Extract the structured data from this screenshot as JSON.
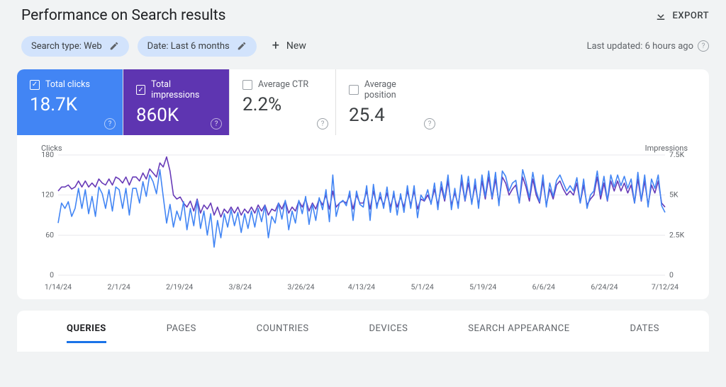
{
  "header": {
    "title": "Performance on Search results",
    "export_label": "EXPORT"
  },
  "filters": {
    "search_type": "Search type: Web",
    "date_range": "Date: Last 6 months",
    "new_label": "New",
    "last_updated": "Last updated: 6 hours ago"
  },
  "metrics": {
    "clicks": {
      "label": "Total clicks",
      "value": "18.7K",
      "checked": true,
      "bg": "#4285f4"
    },
    "impressions": {
      "label": "Total impressions",
      "value": "860K",
      "checked": true,
      "bg": "#5e35b1"
    },
    "ctr": {
      "label": "Average CTR",
      "value": "2.2%",
      "checked": false,
      "bg": "#ffffff"
    },
    "position": {
      "label": "Average position",
      "value": "25.4",
      "checked": false,
      "bg": "#ffffff"
    }
  },
  "chart": {
    "y_left_label": "Clicks",
    "y_right_label": "Impressions",
    "y_left_ticks": [
      "180",
      "120",
      "60",
      "0"
    ],
    "y_right_ticks": [
      "7.5K",
      "5K",
      "2.5K",
      "0"
    ],
    "x_ticks": [
      "1/14/24",
      "2/1/24",
      "2/19/24",
      "3/8/24",
      "3/26/24",
      "4/13/24",
      "5/1/24",
      "5/19/24",
      "6/6/24",
      "6/24/24",
      "7/12/24"
    ],
    "x_domain": [
      0,
      180
    ],
    "y_left_domain": [
      0,
      180
    ],
    "y_right_domain": [
      0,
      7500
    ],
    "grid_color": "#e8eaed",
    "axis_text_color": "#5f6368",
    "background_color": "#ffffff",
    "series": {
      "clicks": {
        "color": "#4285f4",
        "stroke_width": 1.6,
        "values": [
          78,
          108,
          100,
          110,
          88,
          100,
          130,
          100,
          128,
          92,
          118,
          88,
          132,
          122,
          100,
          128,
          96,
          132,
          128,
          100,
          130,
          90,
          130,
          130,
          108,
          140,
          118,
          150,
          140,
          122,
          158,
          118,
          78,
          106,
          72,
          96,
          82,
          110,
          68,
          100,
          74,
          112,
          70,
          96,
          60,
          92,
          42,
          82,
          56,
          92,
          72,
          98,
          74,
          94,
          64,
          92,
          70,
          96,
          72,
          100,
          80,
          104,
          56,
          88,
          78,
          108,
          84,
          112,
          68,
          96,
          78,
          112,
          92,
          118,
          76,
          106,
          82,
          116,
          98,
          128,
          80,
          150,
          88,
          108,
          112,
          104,
          126,
          82,
          126,
          106,
          102,
          134,
          82,
          136,
          100,
          124,
          100,
          132,
          94,
          126,
          90,
          122,
          94,
          134,
          100,
          134,
          86,
          120,
          112,
          128,
          106,
          138,
          98,
          140,
          114,
          150,
          98,
          130,
          100,
          150,
          112,
          148,
          106,
          144,
          100,
          150,
          118,
          156,
          116,
          154,
          104,
          156,
          148,
          126,
          138,
          142,
          108,
          158,
          140,
          116,
          154,
          126,
          110,
          150,
          102,
          138,
          118,
          142,
          150,
          138,
          126,
          134,
          126,
          146,
          108,
          144,
          100,
          120,
          126,
          156,
          120,
          148,
          112,
          150,
          132,
          150,
          134,
          148,
          130,
          144,
          108,
          154,
          112,
          150,
          102,
          144,
          130,
          150,
          104,
          94
        ]
      },
      "impressions": {
        "color": "#673ab7",
        "stroke_width": 1.6,
        "values": [
          5250,
          5500,
          5500,
          5625,
          5375,
          5500,
          5875,
          5500,
          5875,
          5500,
          5750,
          5500,
          6000,
          5750,
          5625,
          6000,
          5625,
          6125,
          6000,
          5750,
          6125,
          5625,
          6125,
          6125,
          5875,
          6375,
          6000,
          6625,
          6375,
          6125,
          7000,
          6750,
          7375,
          6500,
          5000,
          4750,
          4875,
          4500,
          4250,
          4625,
          4000,
          4750,
          3875,
          4375,
          4125,
          4500,
          3750,
          4250,
          3625,
          4125,
          3875,
          4250,
          3875,
          4250,
          3750,
          4125,
          3875,
          4250,
          3875,
          4375,
          4000,
          4375,
          3750,
          4125,
          4000,
          4500,
          4125,
          4625,
          3875,
          4250,
          4000,
          4625,
          4250,
          4750,
          4000,
          4500,
          4125,
          4750,
          4375,
          5000,
          4125,
          5250,
          4250,
          4500,
          4625,
          4500,
          5000,
          4125,
          5000,
          4500,
          4500,
          5250,
          4125,
          5250,
          4375,
          4875,
          4375,
          5125,
          4250,
          5000,
          4250,
          4875,
          4250,
          5250,
          4375,
          5250,
          4125,
          4750,
          4625,
          5000,
          4500,
          5375,
          4375,
          5500,
          4625,
          5875,
          4375,
          5125,
          4375,
          5875,
          4625,
          5750,
          4500,
          5625,
          4375,
          5875,
          4750,
          6125,
          4750,
          6000,
          4500,
          6125,
          5750,
          5000,
          5375,
          5625,
          4500,
          6125,
          5500,
          4625,
          6000,
          5000,
          4500,
          5875,
          4375,
          5375,
          4750,
          5625,
          5875,
          5375,
          5000,
          5250,
          5000,
          5750,
          4500,
          5625,
          4375,
          4750,
          5000,
          6125,
          4750,
          5750,
          4625,
          5875,
          5250,
          5875,
          5250,
          5750,
          5125,
          5625,
          4500,
          6000,
          4625,
          5875,
          4375,
          5625,
          5125,
          5875,
          4500,
          4250
        ]
      }
    }
  },
  "tabs": {
    "items": [
      "QUERIES",
      "PAGES",
      "COUNTRIES",
      "DEVICES",
      "SEARCH APPEARANCE",
      "DATES"
    ],
    "active_index": 0
  }
}
